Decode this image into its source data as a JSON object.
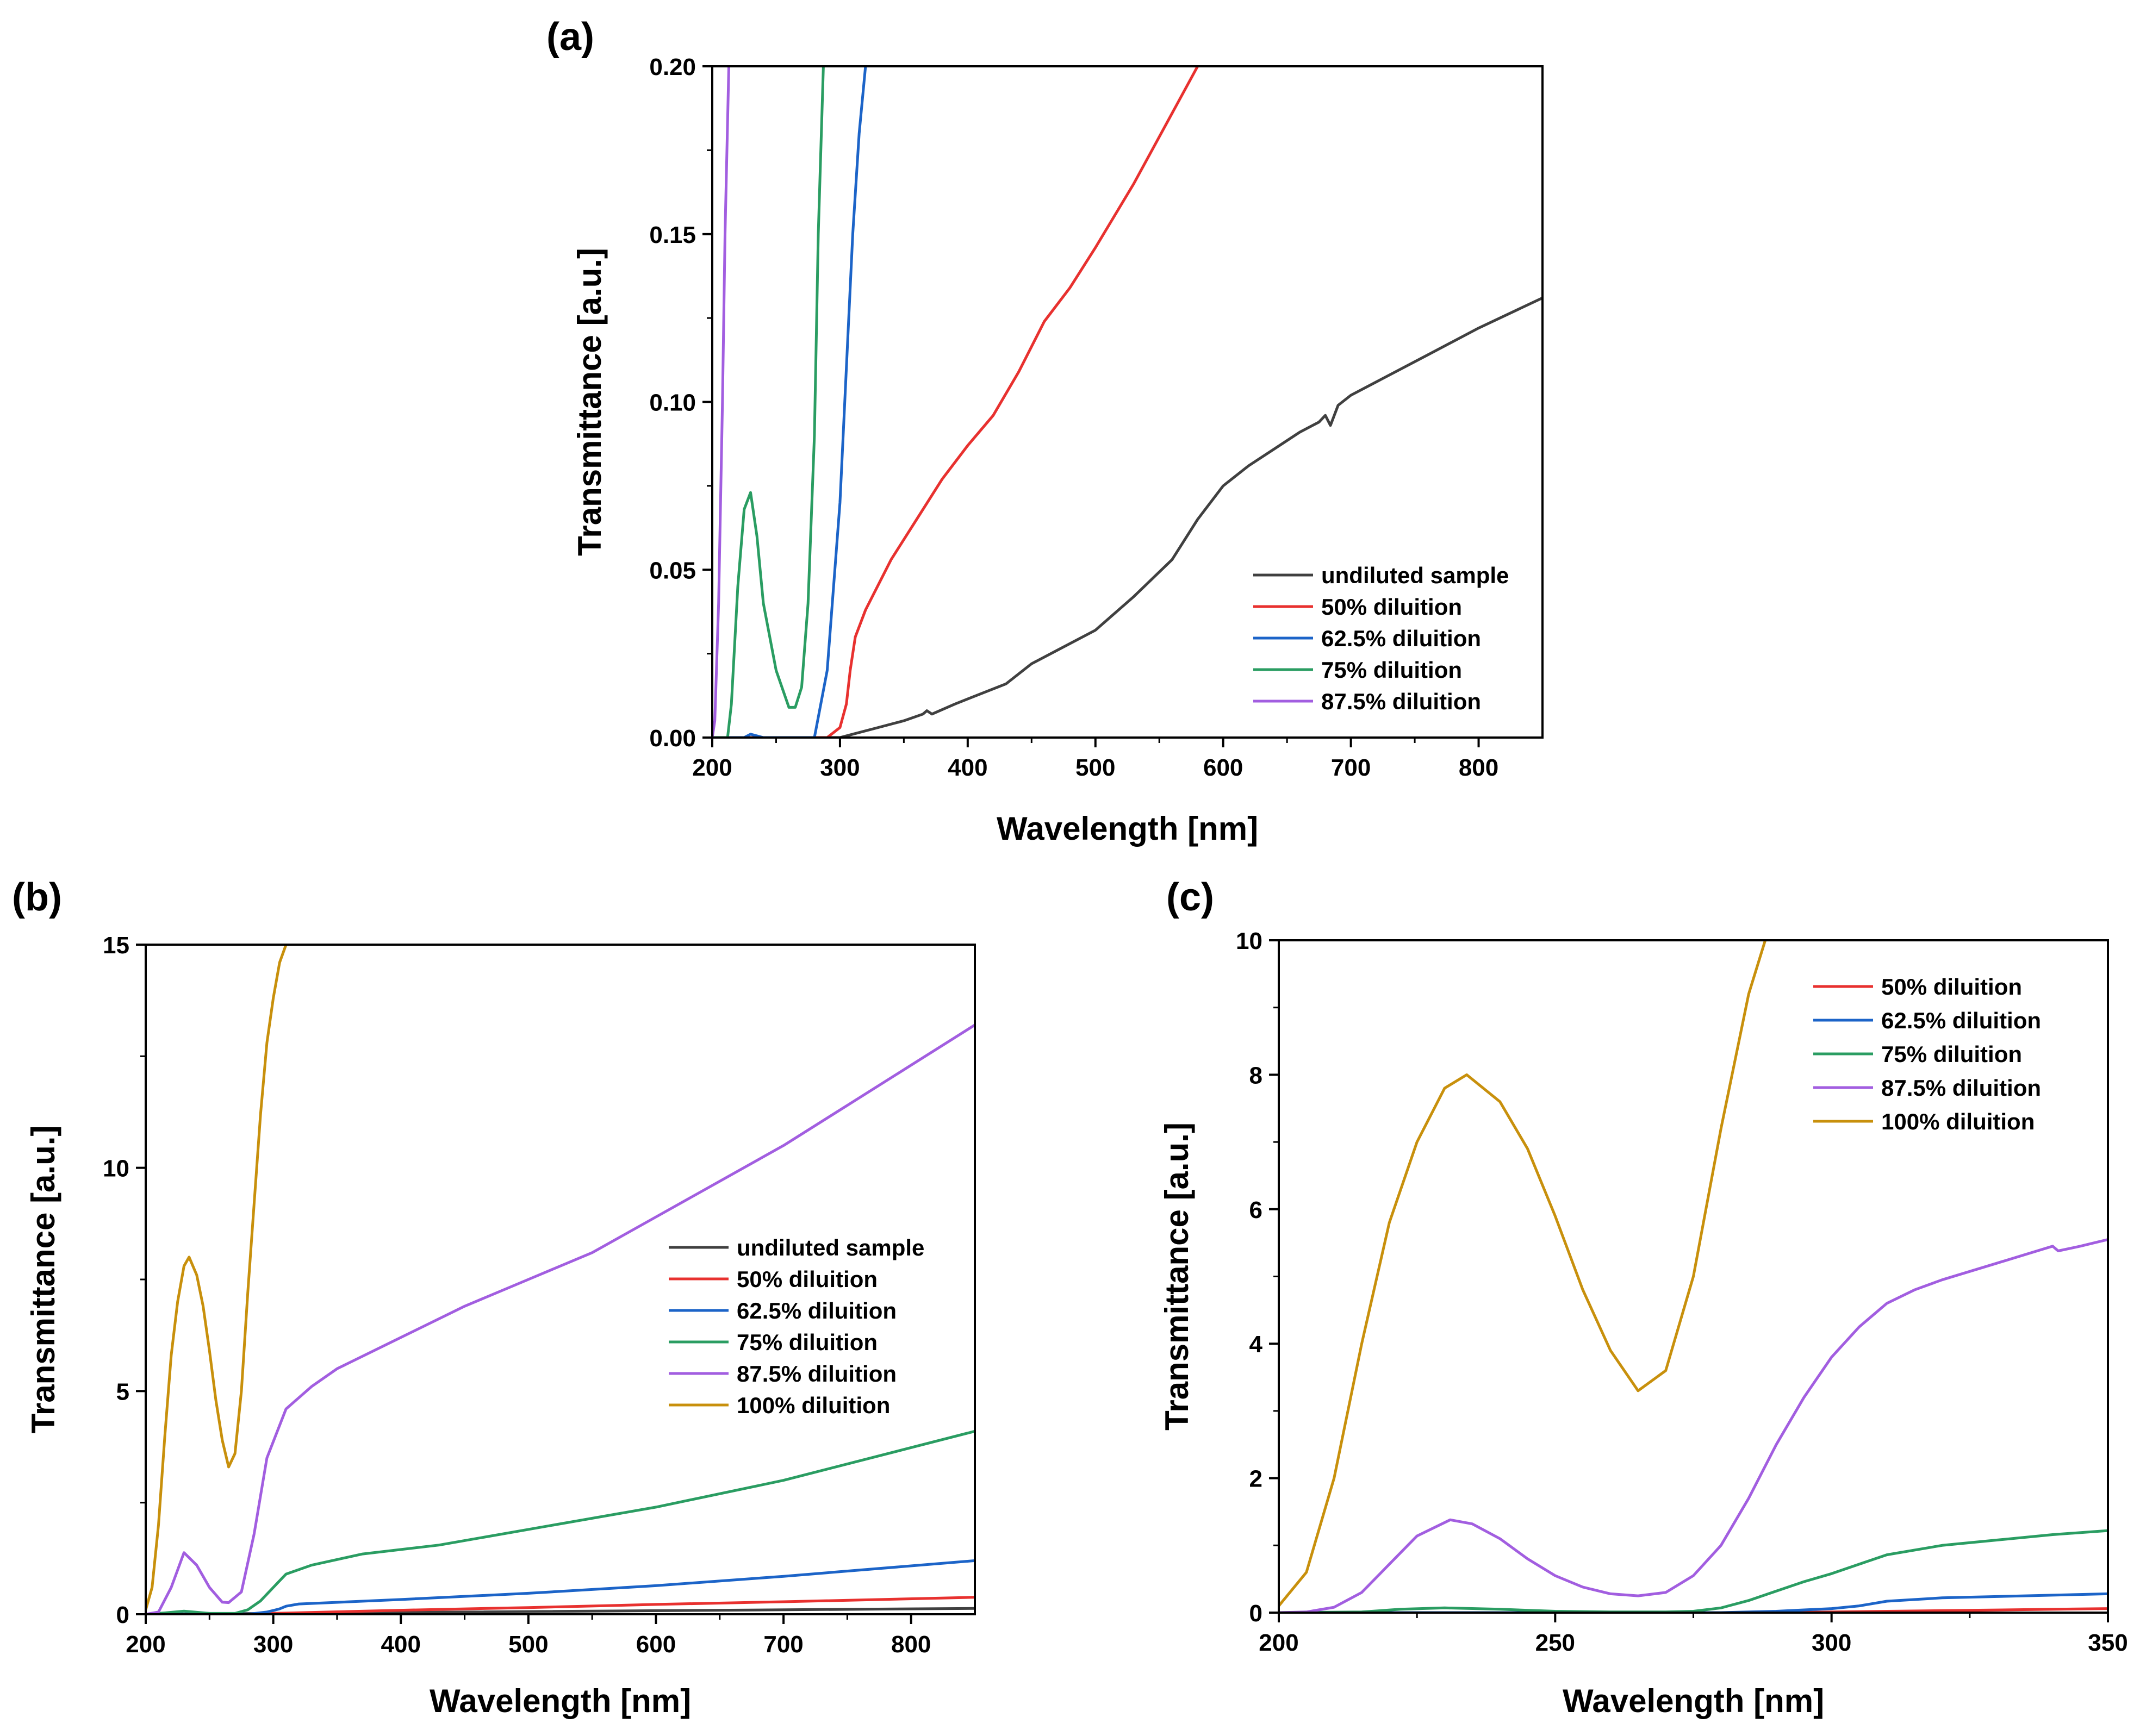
{
  "colors": {
    "undiluted": "#404040",
    "d50": "#e8312f",
    "d625": "#1c64c8",
    "d75": "#2a9d62",
    "d875": "#a25ee0",
    "d100": "#c8900c"
  },
  "chart_data": [
    {
      "panel": "(a)",
      "type": "line",
      "xlabel": "Wavelength [nm]",
      "ylabel": "Transmittance [a.u.]",
      "xlim": [
        200,
        850
      ],
      "ylim": [
        0,
        0.2
      ],
      "xticks": [
        200,
        300,
        400,
        500,
        600,
        700,
        800
      ],
      "xtick_labels": [
        "200",
        "300",
        "400",
        "500",
        "600",
        "700",
        "800"
      ],
      "yticks": [
        0,
        0.05,
        0.1,
        0.15,
        0.2
      ],
      "ytick_labels": [
        "0.00",
        "0.05",
        "0.10",
        "0.15",
        "0.20"
      ],
      "legend_position": "bottom-right",
      "series": [
        {
          "name": "undiluted sample",
          "color_key": "undiluted",
          "x": [
            200,
            300,
            310,
            330,
            350,
            365,
            368,
            372,
            390,
            410,
            430,
            450,
            470,
            500,
            530,
            560,
            580,
            600,
            620,
            640,
            660,
            675,
            680,
            684,
            690,
            700,
            720,
            760,
            800,
            850
          ],
          "y": [
            0,
            0,
            0.001,
            0.003,
            0.005,
            0.007,
            0.008,
            0.007,
            0.01,
            0.013,
            0.016,
            0.022,
            0.026,
            0.032,
            0.042,
            0.053,
            0.065,
            0.075,
            0.081,
            0.086,
            0.091,
            0.094,
            0.096,
            0.093,
            0.099,
            0.102,
            0.106,
            0.114,
            0.122,
            0.131
          ]
        },
        {
          "name": "50% diluition",
          "color_key": "d50",
          "x": [
            200,
            290,
            300,
            305,
            308,
            312,
            320,
            340,
            360,
            380,
            400,
            420,
            440,
            460,
            480,
            500,
            530,
            560,
            580
          ],
          "y": [
            0,
            0,
            0.003,
            0.01,
            0.02,
            0.03,
            0.038,
            0.053,
            0.065,
            0.077,
            0.087,
            0.096,
            0.109,
            0.124,
            0.134,
            0.146,
            0.165,
            0.186,
            0.2
          ]
        },
        {
          "name": "62.5% diluition",
          "color_key": "d625",
          "x": [
            200,
            225,
            230,
            235,
            240,
            280,
            290,
            300,
            310,
            315,
            320
          ],
          "y": [
            0,
            0,
            0.001,
            0.0005,
            0,
            0,
            0.02,
            0.07,
            0.15,
            0.18,
            0.2
          ]
        },
        {
          "name": "75% diluition",
          "color_key": "d75",
          "x": [
            200,
            212,
            215,
            220,
            225,
            230,
            235,
            240,
            250,
            260,
            265,
            270,
            275,
            280,
            283,
            287
          ],
          "y": [
            0,
            0,
            0.01,
            0.045,
            0.068,
            0.073,
            0.06,
            0.04,
            0.02,
            0.009,
            0.009,
            0.015,
            0.04,
            0.09,
            0.15,
            0.2
          ]
        },
        {
          "name": "87.5% diluition",
          "color_key": "d875",
          "x": [
            200,
            202,
            205,
            208,
            210,
            213
          ],
          "y": [
            0,
            0.005,
            0.04,
            0.1,
            0.15,
            0.2
          ]
        }
      ]
    },
    {
      "panel": "(b)",
      "type": "line",
      "xlabel": "Wavelength [nm]",
      "ylabel": "Transmittance [a.u.]",
      "xlim": [
        200,
        850
      ],
      "ylim": [
        0,
        15
      ],
      "xticks": [
        200,
        300,
        400,
        500,
        600,
        700,
        800
      ],
      "xtick_labels": [
        "200",
        "300",
        "400",
        "500",
        "600",
        "700",
        "800"
      ],
      "yticks": [
        0,
        5,
        10,
        15
      ],
      "ytick_labels": [
        "0",
        "5",
        "10",
        "15"
      ],
      "legend_position": "middle-right",
      "series": [
        {
          "name": "undiluted sample",
          "color_key": "undiluted",
          "x": [
            200,
            850
          ],
          "y": [
            0,
            0.13
          ]
        },
        {
          "name": "50% diluition",
          "color_key": "d50",
          "x": [
            200,
            290,
            300,
            400,
            500,
            600,
            700,
            850
          ],
          "y": [
            0,
            0,
            0.02,
            0.09,
            0.15,
            0.22,
            0.28,
            0.38
          ]
        },
        {
          "name": "62.5% diluition",
          "color_key": "d625",
          "x": [
            200,
            280,
            295,
            305,
            310,
            320,
            400,
            500,
            600,
            700,
            850
          ],
          "y": [
            0,
            0,
            0.05,
            0.12,
            0.18,
            0.23,
            0.33,
            0.47,
            0.64,
            0.85,
            1.2
          ]
        },
        {
          "name": "75% diluition",
          "color_key": "d75",
          "x": [
            200,
            215,
            230,
            250,
            270,
            280,
            290,
            300,
            310,
            330,
            370,
            430,
            500,
            600,
            700,
            850
          ],
          "y": [
            0,
            0.03,
            0.07,
            0.02,
            0.02,
            0.1,
            0.3,
            0.6,
            0.9,
            1.1,
            1.35,
            1.55,
            1.9,
            2.4,
            3.0,
            4.1
          ]
        },
        {
          "name": "87.5% diluition",
          "color_key": "d875",
          "x": [
            200,
            210,
            220,
            230,
            240,
            250,
            260,
            265,
            275,
            285,
            295,
            310,
            330,
            350,
            400,
            450,
            500,
            550,
            600,
            650,
            700,
            750,
            800,
            850
          ],
          "y": [
            0,
            0.05,
            0.6,
            1.38,
            1.1,
            0.6,
            0.27,
            0.26,
            0.5,
            1.8,
            3.5,
            4.6,
            5.1,
            5.5,
            6.2,
            6.9,
            7.5,
            8.1,
            8.9,
            9.7,
            10.5,
            11.4,
            12.3,
            13.2
          ]
        },
        {
          "name": "100% diluition",
          "color_key": "d100",
          "x": [
            200,
            205,
            210,
            215,
            220,
            225,
            230,
            234,
            240,
            245,
            250,
            255,
            260,
            265,
            270,
            275,
            280,
            285,
            290,
            295,
            300,
            305,
            310
          ],
          "y": [
            0.1,
            0.6,
            2.0,
            4.0,
            5.8,
            7.0,
            7.8,
            8.0,
            7.6,
            6.9,
            5.9,
            4.8,
            3.9,
            3.3,
            3.6,
            5.0,
            7.2,
            9.2,
            11.2,
            12.8,
            13.8,
            14.6,
            15.0
          ]
        }
      ]
    },
    {
      "panel": "(c)",
      "type": "line",
      "xlabel": "Wavelength [nm]",
      "ylabel": "Transmittance [a.u.]",
      "xlim": [
        200,
        350
      ],
      "ylim": [
        0,
        10
      ],
      "xticks": [
        200,
        250,
        300,
        350
      ],
      "xtick_labels": [
        "200",
        "250",
        "300",
        "350"
      ],
      "yticks": [
        0,
        2,
        4,
        6,
        8,
        10
      ],
      "ytick_labels": [
        "0",
        "2",
        "4",
        "6",
        "8",
        "10"
      ],
      "legend_position": "top-right",
      "series": [
        {
          "name": "50% diluition",
          "color_key": "d50",
          "x": [
            200,
            290,
            300,
            320,
            350
          ],
          "y": [
            0,
            0,
            0.01,
            0.03,
            0.06
          ]
        },
        {
          "name": "62.5% diluition",
          "color_key": "d625",
          "x": [
            200,
            280,
            290,
            300,
            305,
            310,
            320,
            350
          ],
          "y": [
            0,
            0,
            0.02,
            0.06,
            0.1,
            0.17,
            0.22,
            0.28
          ]
        },
        {
          "name": "75% diluition",
          "color_key": "d75",
          "x": [
            200,
            215,
            222,
            230,
            240,
            250,
            260,
            270,
            275,
            280,
            285,
            290,
            295,
            300,
            305,
            310,
            320,
            330,
            340,
            350
          ],
          "y": [
            0,
            0.01,
            0.05,
            0.07,
            0.05,
            0.02,
            0.01,
            0.01,
            0.02,
            0.07,
            0.18,
            0.32,
            0.46,
            0.58,
            0.72,
            0.86,
            1.0,
            1.08,
            1.16,
            1.22
          ]
        },
        {
          "name": "87.5% diluition",
          "color_key": "d875",
          "x": [
            200,
            205,
            210,
            215,
            220,
            225,
            231,
            235,
            240,
            245,
            250,
            255,
            260,
            265,
            270,
            275,
            280,
            285,
            290,
            295,
            300,
            305,
            310,
            315,
            320,
            330,
            338,
            340,
            341,
            345,
            350
          ],
          "y": [
            0,
            0.01,
            0.08,
            0.3,
            0.72,
            1.14,
            1.38,
            1.32,
            1.1,
            0.8,
            0.55,
            0.38,
            0.28,
            0.25,
            0.3,
            0.55,
            1.0,
            1.7,
            2.5,
            3.2,
            3.8,
            4.25,
            4.6,
            4.8,
            4.95,
            5.2,
            5.4,
            5.45,
            5.38,
            5.45,
            5.55
          ]
        },
        {
          "name": "100% diluition",
          "color_key": "d100",
          "x": [
            200,
            205,
            210,
            215,
            220,
            225,
            230,
            234,
            240,
            245,
            250,
            255,
            260,
            265,
            270,
            275,
            280,
            285,
            288
          ],
          "y": [
            0.1,
            0.6,
            2.0,
            4.0,
            5.8,
            7.0,
            7.8,
            8.0,
            7.6,
            6.9,
            5.9,
            4.8,
            3.9,
            3.3,
            3.6,
            5.0,
            7.2,
            9.2,
            10.0
          ]
        }
      ]
    }
  ]
}
